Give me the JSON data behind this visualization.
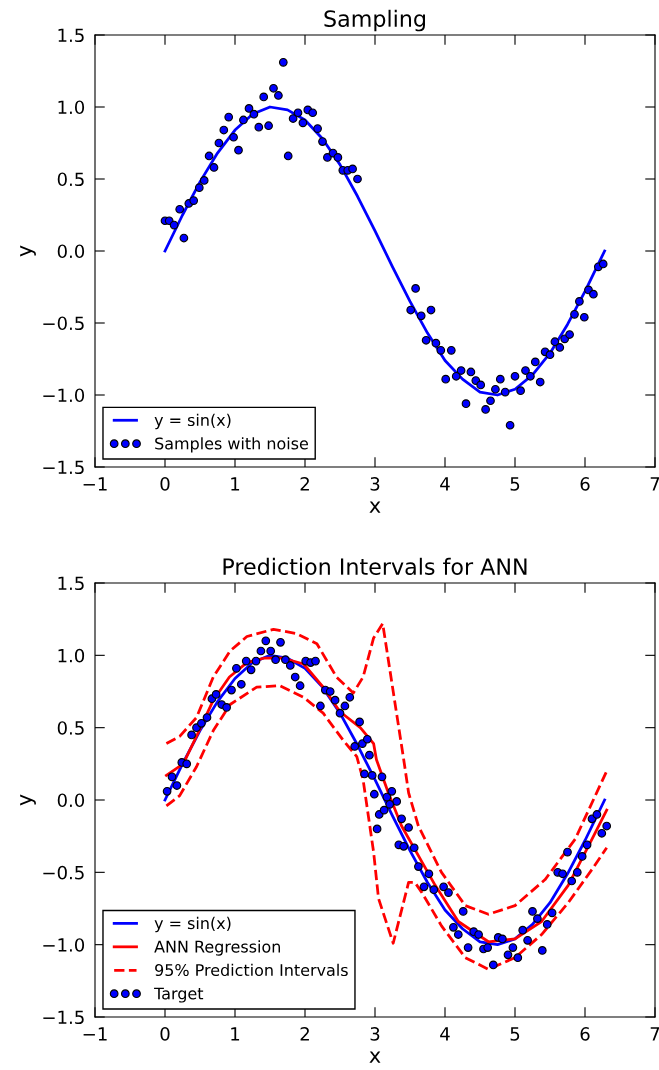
{
  "chart_data": [
    {
      "type": "line",
      "title": "Sampling",
      "xlabel": "x",
      "ylabel": "y",
      "xlim": [
        -1,
        7
      ],
      "ylim": [
        -1.5,
        1.5
      ],
      "xticks": [
        {
          "value": -1,
          "label": "−1"
        },
        0,
        1,
        2,
        3,
        4,
        5,
        6,
        7
      ],
      "yticks": [
        {
          "value": -1.5,
          "label": "−1.5"
        },
        {
          "value": -1.0,
          "label": "−1.0"
        },
        {
          "value": -0.5,
          "label": "−0.5"
        },
        {
          "value": 0,
          "label": "0.0"
        },
        {
          "value": 0.5,
          "label": "0.5"
        },
        {
          "value": 1.0,
          "label": "1.0"
        },
        {
          "value": 1.5,
          "label": "1.5"
        }
      ],
      "grid": false,
      "legend": "bottom left",
      "series": [
        {
          "name": "y = sin(x)",
          "color": "#0000ff",
          "line_style": "solid",
          "marker": "none",
          "x": [
            0,
            0.25,
            0.5,
            0.75,
            1,
            1.25,
            1.5,
            1.75,
            2,
            2.25,
            2.5,
            2.75,
            3,
            3.25,
            3.5,
            3.75,
            4,
            4.25,
            4.5,
            4.75,
            5,
            5.25,
            5.5,
            5.75,
            6,
            6.28
          ],
          "values": [
            0,
            0.25,
            0.48,
            0.68,
            0.84,
            0.95,
            1.0,
            0.98,
            0.91,
            0.78,
            0.6,
            0.38,
            0.14,
            -0.11,
            -0.35,
            -0.57,
            -0.76,
            -0.89,
            -0.98,
            -1.0,
            -0.96,
            -0.86,
            -0.71,
            -0.51,
            -0.28,
            0
          ]
        },
        {
          "type": "scatter",
          "name": "Samples with noise",
          "color": "#0000ff",
          "marker": "circle",
          "x": [
            0.0,
            0.06,
            0.13,
            0.21,
            0.27,
            0.34,
            0.41,
            0.49,
            0.56,
            0.63,
            0.7,
            0.77,
            0.84,
            0.91,
            0.98,
            1.05,
            1.12,
            1.2,
            1.27,
            1.34,
            1.41,
            1.48,
            1.55,
            1.62,
            1.69,
            1.76,
            1.83,
            1.9,
            1.97,
            2.04,
            2.11,
            2.18,
            2.25,
            2.32,
            2.4,
            2.47,
            2.54,
            2.61,
            2.68,
            2.75,
            3.51,
            3.58,
            3.66,
            3.73,
            3.8,
            3.87,
            3.94,
            4.01,
            4.09,
            4.16,
            4.23,
            4.3,
            4.37,
            4.44,
            4.51,
            4.58,
            4.65,
            4.72,
            4.79,
            4.86,
            4.93,
            5.0,
            5.08,
            5.15,
            5.22,
            5.29,
            5.36,
            5.43,
            5.5,
            5.57,
            5.64,
            5.71,
            5.78,
            5.85,
            5.92,
            5.99,
            6.05,
            6.12,
            6.19,
            6.26
          ],
          "values": [
            0.21,
            0.21,
            0.18,
            0.29,
            0.09,
            0.33,
            0.35,
            0.44,
            0.49,
            0.66,
            0.58,
            0.75,
            0.84,
            0.93,
            0.79,
            0.7,
            0.91,
            0.99,
            0.95,
            0.86,
            1.07,
            0.87,
            1.13,
            1.08,
            1.31,
            0.66,
            0.92,
            0.96,
            0.89,
            0.98,
            0.96,
            0.85,
            0.76,
            0.65,
            0.68,
            0.65,
            0.56,
            0.56,
            0.57,
            0.5,
            -0.41,
            -0.26,
            -0.45,
            -0.62,
            -0.41,
            -0.64,
            -0.69,
            -0.89,
            -0.69,
            -0.87,
            -0.83,
            -1.06,
            -0.84,
            -0.9,
            -0.93,
            -1.1,
            -1.04,
            -0.96,
            -0.89,
            -0.98,
            -1.21,
            -0.87,
            -0.97,
            -0.83,
            -0.87,
            -0.77,
            -0.91,
            -0.7,
            -0.72,
            -0.63,
            -0.67,
            -0.61,
            -0.58,
            -0.44,
            -0.35,
            -0.46,
            -0.27,
            -0.3,
            -0.11,
            -0.09
          ]
        }
      ]
    },
    {
      "type": "line",
      "title": "Prediction Intervals for ANN",
      "xlabel": "x",
      "ylabel": "y",
      "xlim": [
        -1,
        7
      ],
      "ylim": [
        -1.5,
        1.5
      ],
      "xticks": [
        {
          "value": -1,
          "label": "−1"
        },
        0,
        1,
        2,
        3,
        4,
        5,
        6,
        7
      ],
      "yticks": [
        {
          "value": -1.5,
          "label": "−1.5"
        },
        {
          "value": -1.0,
          "label": "−1.0"
        },
        {
          "value": -0.5,
          "label": "−0.5"
        },
        {
          "value": 0,
          "label": "0.0"
        },
        {
          "value": 0.5,
          "label": "0.5"
        },
        {
          "value": 1.0,
          "label": "1.0"
        },
        {
          "value": 1.5,
          "label": "1.5"
        }
      ],
      "grid": false,
      "legend": "bottom left",
      "series": [
        {
          "name": "y = sin(x)",
          "color": "#0000ff",
          "line_style": "solid",
          "marker": "none",
          "x": [
            0,
            0.25,
            0.5,
            0.75,
            1,
            1.25,
            1.5,
            1.75,
            2,
            2.25,
            2.5,
            2.75,
            3,
            3.25,
            3.5,
            3.75,
            4,
            4.25,
            4.5,
            4.75,
            5,
            5.25,
            5.5,
            5.75,
            6,
            6.28
          ],
          "values": [
            0,
            0.25,
            0.48,
            0.68,
            0.84,
            0.95,
            1.0,
            0.98,
            0.91,
            0.78,
            0.6,
            0.38,
            0.14,
            -0.11,
            -0.35,
            -0.57,
            -0.76,
            -0.89,
            -0.98,
            -1.0,
            -0.96,
            -0.86,
            -0.71,
            -0.51,
            -0.28,
            0
          ]
        },
        {
          "name": "ANN Regression",
          "color": "#ff0000",
          "line_style": "solid",
          "marker": "none",
          "x": [
            0.02,
            0.26,
            0.45,
            0.69,
            0.92,
            1.17,
            1.41,
            1.69,
            1.98,
            2.26,
            2.5,
            2.79,
            2.98,
            3.02,
            3.19,
            3.38,
            3.86,
            4.19,
            4.62,
            5.0,
            5.38,
            5.76,
            6.1,
            6.31
          ],
          "values": [
            0.17,
            0.25,
            0.44,
            0.69,
            0.85,
            0.95,
            0.98,
            0.98,
            0.94,
            0.78,
            0.61,
            0.5,
            0.39,
            0.28,
            0.05,
            -0.18,
            -0.59,
            -0.84,
            -0.98,
            -0.96,
            -0.84,
            -0.59,
            -0.27,
            -0.07
          ]
        },
        {
          "name": "95% Prediction Intervals",
          "color": "#ff0000",
          "line_style": "dashed",
          "marker": "none",
          "x": [
            0.02,
            0.21,
            0.45,
            0.69,
            0.93,
            1.17,
            1.55,
            1.88,
            2.17,
            2.45,
            2.69,
            2.83,
            2.98,
            3.11,
            3.41,
            3.48,
            3.62,
            3.95,
            4.29,
            4.62,
            5.0,
            5.43,
            5.86,
            6.31
          ],
          "values": [
            0.39,
            0.44,
            0.57,
            0.85,
            1.03,
            1.13,
            1.18,
            1.15,
            1.08,
            0.85,
            0.74,
            0.85,
            1.12,
            1.22,
            0.28,
            0.05,
            -0.18,
            -0.5,
            -0.73,
            -0.79,
            -0.73,
            -0.55,
            -0.27,
            0.2
          ]
        },
        {
          "color": "#ff0000",
          "line_style": "dashed",
          "marker": "none",
          "x": [
            0.02,
            0.21,
            0.45,
            0.69,
            0.93,
            1.31,
            1.64,
            1.98,
            2.26,
            2.55,
            2.74,
            2.83,
            2.98,
            3.05,
            3.26,
            3.48,
            3.57,
            3.67,
            3.95,
            4.29,
            4.62,
            5.0,
            5.38,
            5.76,
            6.1,
            6.31
          ],
          "values": [
            -0.04,
            0.03,
            0.23,
            0.48,
            0.66,
            0.78,
            0.79,
            0.71,
            0.6,
            0.41,
            0.3,
            0.14,
            -0.36,
            -0.68,
            -0.99,
            -0.57,
            -0.57,
            -0.64,
            -0.87,
            -1.09,
            -1.17,
            -1.09,
            -0.93,
            -0.71,
            -0.48,
            -0.33
          ]
        },
        {
          "type": "scatter",
          "name": "Target",
          "color": "#0000ff",
          "marker": "circle",
          "x": [
            0.03,
            0.1,
            0.17,
            0.24,
            0.31,
            0.38,
            0.45,
            0.52,
            0.6,
            0.67,
            0.73,
            0.81,
            0.88,
            0.95,
            1.02,
            1.09,
            1.16,
            1.23,
            1.3,
            1.37,
            1.44,
            1.51,
            1.58,
            1.65,
            1.72,
            1.79,
            1.86,
            1.93,
            2.01,
            2.08,
            2.15,
            2.22,
            2.29,
            2.36,
            2.43,
            2.5,
            2.57,
            2.64,
            2.71,
            2.78,
            2.82,
            2.89,
            2.92,
            2.85,
            2.96,
            3.1,
            2.99,
            3.17,
            3.24,
            3.31,
            3.06,
            3.13,
            3.03,
            3.21,
            3.38,
            3.48,
            3.34,
            3.41,
            3.56,
            3.62,
            3.77,
            3.7,
            3.84,
            3.98,
            4.05,
            4.26,
            4.12,
            4.19,
            4.33,
            4.41,
            4.48,
            4.55,
            4.61,
            4.69,
            4.76,
            4.82,
            4.9,
            4.97,
            5.04,
            5.11,
            5.18,
            5.25,
            5.32,
            5.39,
            5.46,
            5.53,
            5.61,
            5.68,
            5.75,
            5.81,
            5.89,
            5.96,
            6.03,
            6.1,
            6.17,
            6.24,
            6.31
          ],
          "values": [
            0.06,
            0.16,
            0.1,
            0.26,
            0.25,
            0.45,
            0.5,
            0.53,
            0.57,
            0.7,
            0.73,
            0.66,
            0.64,
            0.76,
            0.91,
            0.8,
            0.96,
            0.9,
            0.96,
            1.03,
            1.1,
            1.03,
            0.97,
            1.09,
            0.97,
            0.93,
            0.85,
            0.79,
            0.96,
            0.95,
            0.96,
            0.65,
            0.76,
            0.75,
            0.69,
            0.6,
            0.65,
            0.71,
            0.37,
            0.54,
            0.39,
            0.42,
            0.31,
            0.18,
            0.17,
            0.16,
            0.04,
            0.02,
            0.06,
            -0.01,
            -0.1,
            -0.07,
            -0.2,
            -0.03,
            -0.13,
            -0.19,
            -0.31,
            -0.32,
            -0.33,
            -0.46,
            -0.51,
            -0.6,
            -0.62,
            -0.6,
            -0.64,
            -0.77,
            -0.88,
            -0.93,
            -1.02,
            -0.91,
            -0.93,
            -1.03,
            -1.02,
            -1.14,
            -0.95,
            -0.96,
            -1.07,
            -1.02,
            -1.09,
            -0.9,
            -0.97,
            -0.77,
            -0.82,
            -1.04,
            -0.86,
            -0.78,
            -0.5,
            -0.51,
            -0.36,
            -0.56,
            -0.5,
            -0.39,
            -0.31,
            -0.13,
            -0.1,
            -0.23,
            -0.18
          ]
        }
      ]
    }
  ]
}
